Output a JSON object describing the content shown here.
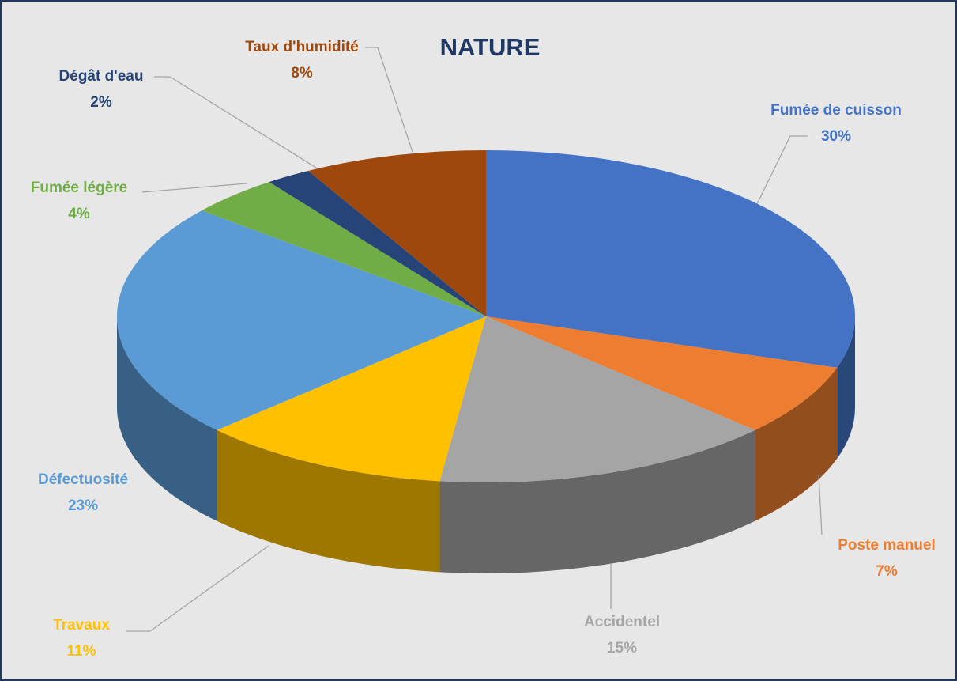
{
  "chart_data": {
    "type": "pie",
    "title": "NATURE",
    "categories": [
      "Fumée de cuisson",
      "Poste manuel",
      "Accidentel",
      "Travaux",
      "Défectuosité",
      "Fumée légère",
      "Dégât d'eau",
      "Taux d'humidité"
    ],
    "values": [
      30,
      7,
      15,
      11,
      23,
      4,
      2,
      8
    ],
    "value_labels": [
      "30%",
      "7%",
      "15%",
      "11%",
      "23%",
      "4%",
      "2%",
      "8%"
    ],
    "colors": [
      "#4472c4",
      "#ed7d31",
      "#a5a5a5",
      "#ffc000",
      "#5b9bd5",
      "#70ad47",
      "#264478",
      "#9e480e"
    ]
  }
}
